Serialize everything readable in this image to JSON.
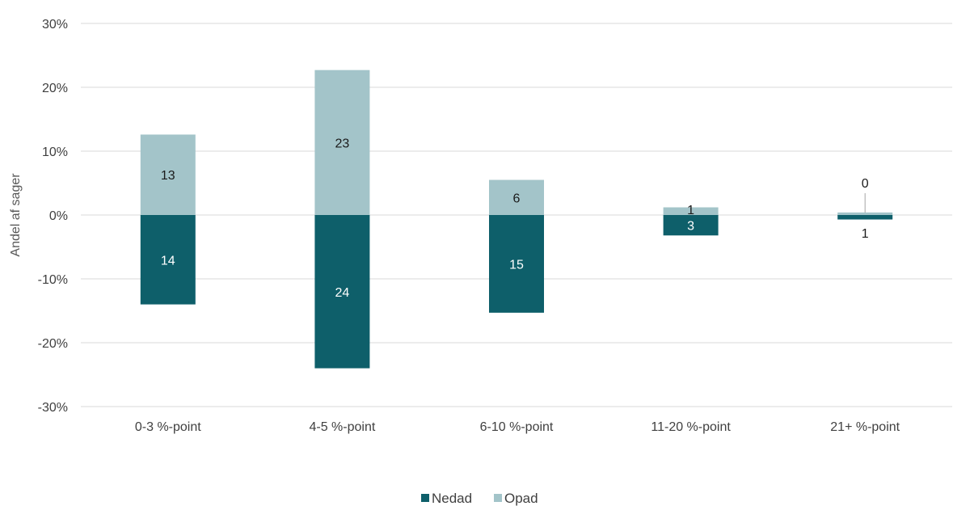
{
  "chart_data": {
    "type": "bar",
    "stacked": true,
    "categories": [
      "0-3 %-point",
      "4-5 %-point",
      "6-10 %-point",
      "11-20 %-point",
      "21+ %-point"
    ],
    "series": [
      {
        "name": "Nedad",
        "values": [
          -14,
          -24,
          -15.3,
          -3.2,
          -0.7
        ],
        "labels": [
          "14",
          "24",
          "15",
          "3",
          "1"
        ],
        "color": "#0e5f6a",
        "label_color": "#ffffff"
      },
      {
        "name": "Opad",
        "values": [
          12.6,
          22.7,
          5.5,
          1.2,
          0.4
        ],
        "labels": [
          "13",
          "23",
          "6",
          "1",
          "0"
        ],
        "color": "#a3c4c9",
        "label_color": "#1a1a1a"
      }
    ],
    "ylabel": "Andel af sager",
    "ylim": [
      -30,
      30
    ],
    "yticks": [
      30,
      20,
      10,
      0,
      -10,
      -20,
      -30
    ],
    "ytick_labels": [
      "30%",
      "20%",
      "10%",
      "0%",
      "-10%",
      "-20%",
      "-30%"
    ],
    "grid": true,
    "legend_position": "bottom-center"
  }
}
